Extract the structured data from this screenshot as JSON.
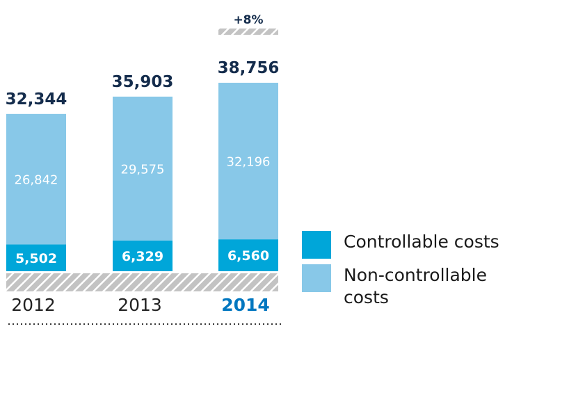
{
  "chart_data": {
    "type": "bar",
    "stacked": true,
    "categories": [
      "2012",
      "2013",
      "2014"
    ],
    "highlight_category": "2014",
    "series": [
      {
        "name": "Controllable costs",
        "values": [
          5502,
          6329,
          6560
        ],
        "color": "#00a6d9"
      },
      {
        "name": "Non-controllable costs",
        "values": [
          26842,
          29575,
          32196
        ],
        "color": "#88c8e8"
      }
    ],
    "totals": [
      "32,344",
      "35,903",
      "38,756"
    ],
    "value_labels": [
      [
        "5,502",
        "6,329",
        "6,560"
      ],
      [
        "26,842",
        "29,575",
        "32,196"
      ]
    ],
    "annotation": "+8%",
    "ylim": [
      0,
      40000
    ],
    "legend_position": "right",
    "grid": false,
    "colors": {
      "total_text": "#142c4c",
      "highlight": "#0077c0",
      "hatch": "#c3c3c3"
    }
  }
}
